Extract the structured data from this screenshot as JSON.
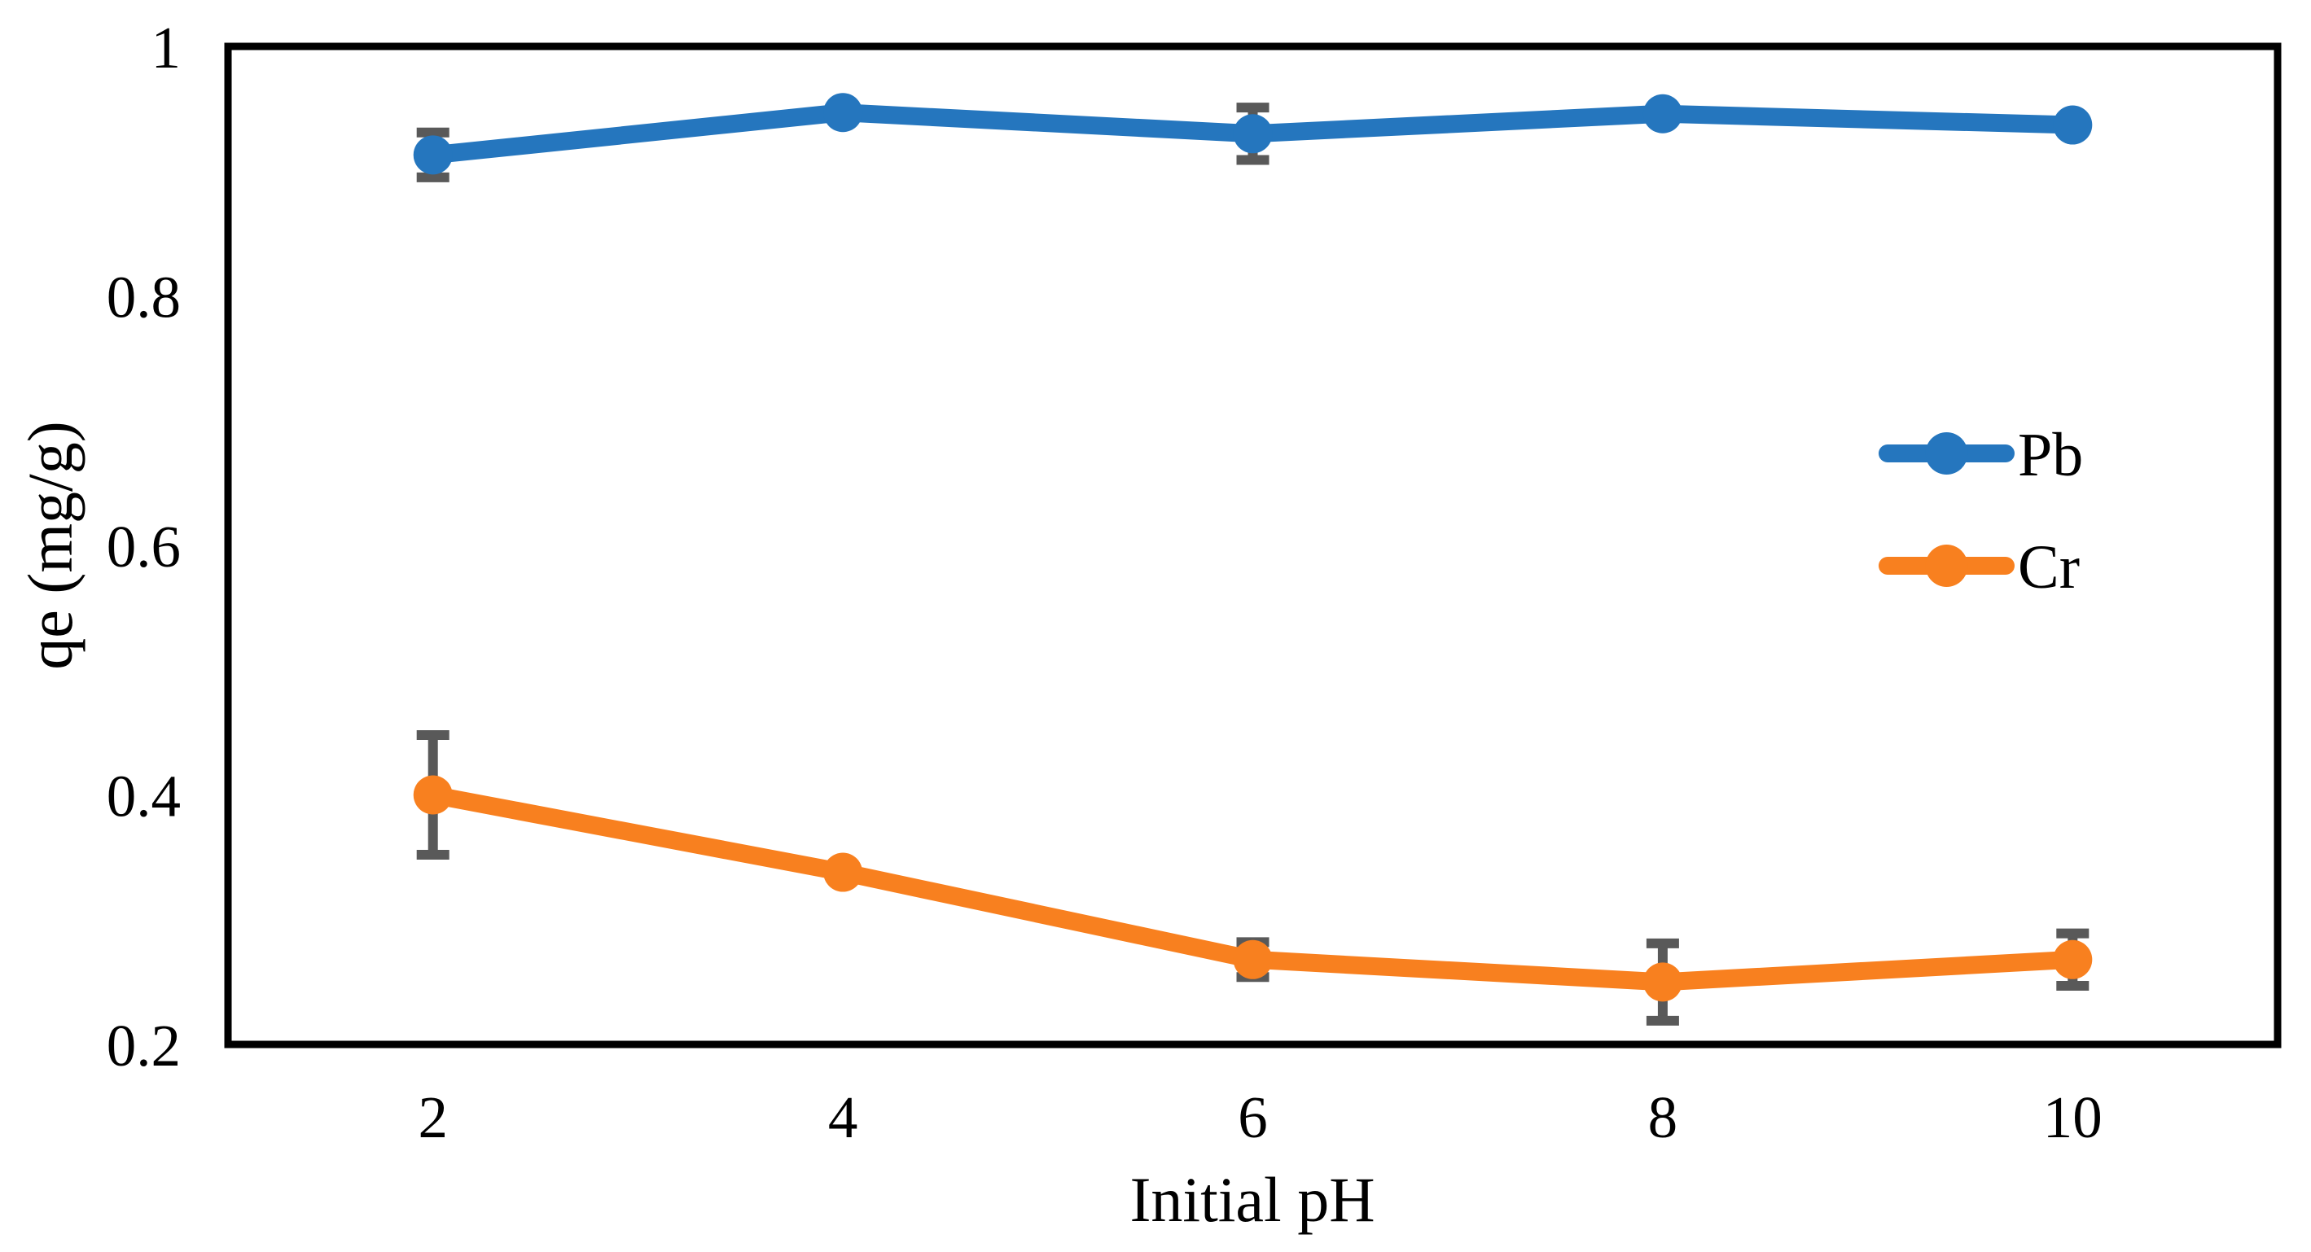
{
  "chart_data": {
    "type": "line",
    "title": "",
    "xlabel": "Initial pH",
    "ylabel": "qe (mg/g)",
    "x": [
      2,
      4,
      6,
      8,
      10
    ],
    "x_tick_labels": [
      "2",
      "4",
      "6",
      "8",
      "10"
    ],
    "y_ticks": [
      0.2,
      0.4,
      0.6,
      0.8,
      1
    ],
    "y_tick_labels": [
      "0.2",
      "0.4",
      "0.6",
      "0.8",
      "1"
    ],
    "ylim": [
      0.2,
      1.0
    ],
    "grid": false,
    "legend_position": "inside-right",
    "error_bar_color": "#595959",
    "axis_color": "#000000",
    "background_color": "#ffffff",
    "series": [
      {
        "name": "Pb",
        "color": "#2576BE",
        "values": [
          0.913,
          0.947,
          0.93,
          0.946,
          0.937
        ],
        "errors": [
          0.018,
          0,
          0.021,
          0,
          0
        ]
      },
      {
        "name": "Cr",
        "color": "#F8801F",
        "values": [
          0.4,
          0.338,
          0.268,
          0.25,
          0.268
        ],
        "errors": [
          0.048,
          0,
          0.014,
          0.031,
          0.021
        ]
      }
    ]
  }
}
